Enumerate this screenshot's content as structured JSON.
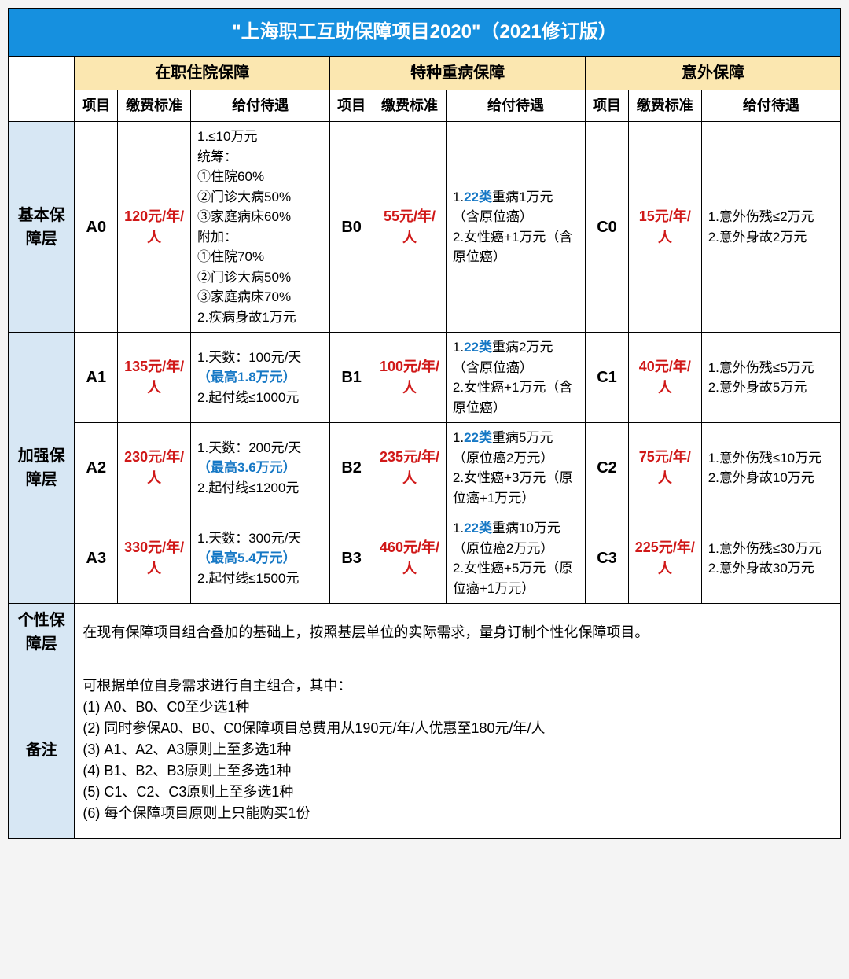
{
  "colors": {
    "title_bg": "#1690df",
    "title_fg": "#ffffff",
    "cat_bg": "#fbe7b0",
    "layer_bg": "#d7e7f4",
    "border": "#010101",
    "fee_color": "#d01818",
    "blue": "#1678c5"
  },
  "title": "\"上海职工互助保障项目2020\"（2021修订版）",
  "categories": [
    "在职住院保障",
    "特种重病保障",
    "意外保障"
  ],
  "subheaders": [
    "项目",
    "缴费标准",
    "给付待遇"
  ],
  "layers": {
    "basic": "基本保障层",
    "enhanced": "加强保障层",
    "custom": "个性保障层",
    "notes": "备注"
  },
  "rows": {
    "r0": {
      "a_proj": "A0",
      "a_fee": "120元/年/人",
      "a_ben_pre": "1.≤10万元\n统筹：\n①住院60%\n②门诊大病50%\n③家庭病床60%\n附加：\n①住院70%\n②门诊大病50%\n③家庭病床70%\n2.疾病身故1万元",
      "b_proj": "B0",
      "b_fee": "55元/年/人",
      "b_ben_1p": "1.",
      "b_ben_22": "22类",
      "b_ben_1s": "重病1万元（含原位癌）",
      "b_ben_2": "2.女性癌+1万元（含原位癌）",
      "c_proj": "C0",
      "c_fee": "15元/年/人",
      "c_ben": "1.意外伤残≤2万元\n2.意外身故2万元"
    },
    "r1": {
      "a_proj": "A1",
      "a_fee": "135元/年/人",
      "a_ben_1p": "1.天数：100元/天",
      "a_ben_blue": "（最高1.8万元）",
      "a_ben_2": "2.起付线≤1000元",
      "b_proj": "B1",
      "b_fee": "100元/年/人",
      "b_ben_1p": "1.",
      "b_ben_22": "22类",
      "b_ben_1s": "重病2万元（含原位癌）",
      "b_ben_2": "2.女性癌+1万元（含原位癌）",
      "c_proj": "C1",
      "c_fee": "40元/年/人",
      "c_ben": "1.意外伤残≤5万元\n2.意外身故5万元"
    },
    "r2": {
      "a_proj": "A2",
      "a_fee": "230元/年/人",
      "a_ben_1p": "1.天数：200元/天",
      "a_ben_blue": "（最高3.6万元）",
      "a_ben_2": "2.起付线≤1200元",
      "b_proj": "B2",
      "b_fee": "235元/年/人",
      "b_ben_1p": "1.",
      "b_ben_22": "22类",
      "b_ben_1s": "重病5万元（原位癌2万元）",
      "b_ben_2": "2.女性癌+3万元（原位癌+1万元）",
      "c_proj": "C2",
      "c_fee": "75元/年/人",
      "c_ben": "1.意外伤残≤10万元\n2.意外身故10万元"
    },
    "r3": {
      "a_proj": "A3",
      "a_fee": "330元/年/人",
      "a_ben_1p": "1.天数：300元/天",
      "a_ben_blue": "（最高5.4万元）",
      "a_ben_2": "2.起付线≤1500元",
      "b_proj": "B3",
      "b_fee": "460元/年/人",
      "b_ben_1p": "1.",
      "b_ben_22": "22类",
      "b_ben_1s": "重病10万元（原位癌2万元）",
      "b_ben_2": "2.女性癌+5万元（原位癌+1万元）",
      "c_proj": "C3",
      "c_fee": "225元/年/人",
      "c_ben": "1.意外伤残≤30万元\n2.意外身故30万元"
    }
  },
  "custom_text": "在现有保障项目组合叠加的基础上，按照基层单位的实际需求，量身订制个性化保障项目。",
  "notes_text": "可根据单位自身需求进行自主组合，其中：\n(1) A0、B0、C0至少选1种\n(2) 同时参保A0、B0、C0保障项目总费用从190元/年/人优惠至180元/年/人\n(3) A1、A2、A3原则上至多选1种\n(4) B1、B2、B3原则上至多选1种\n(5) C1、C2、C3原则上至多选1种\n(6) 每个保障项目原则上只能购买1份"
}
